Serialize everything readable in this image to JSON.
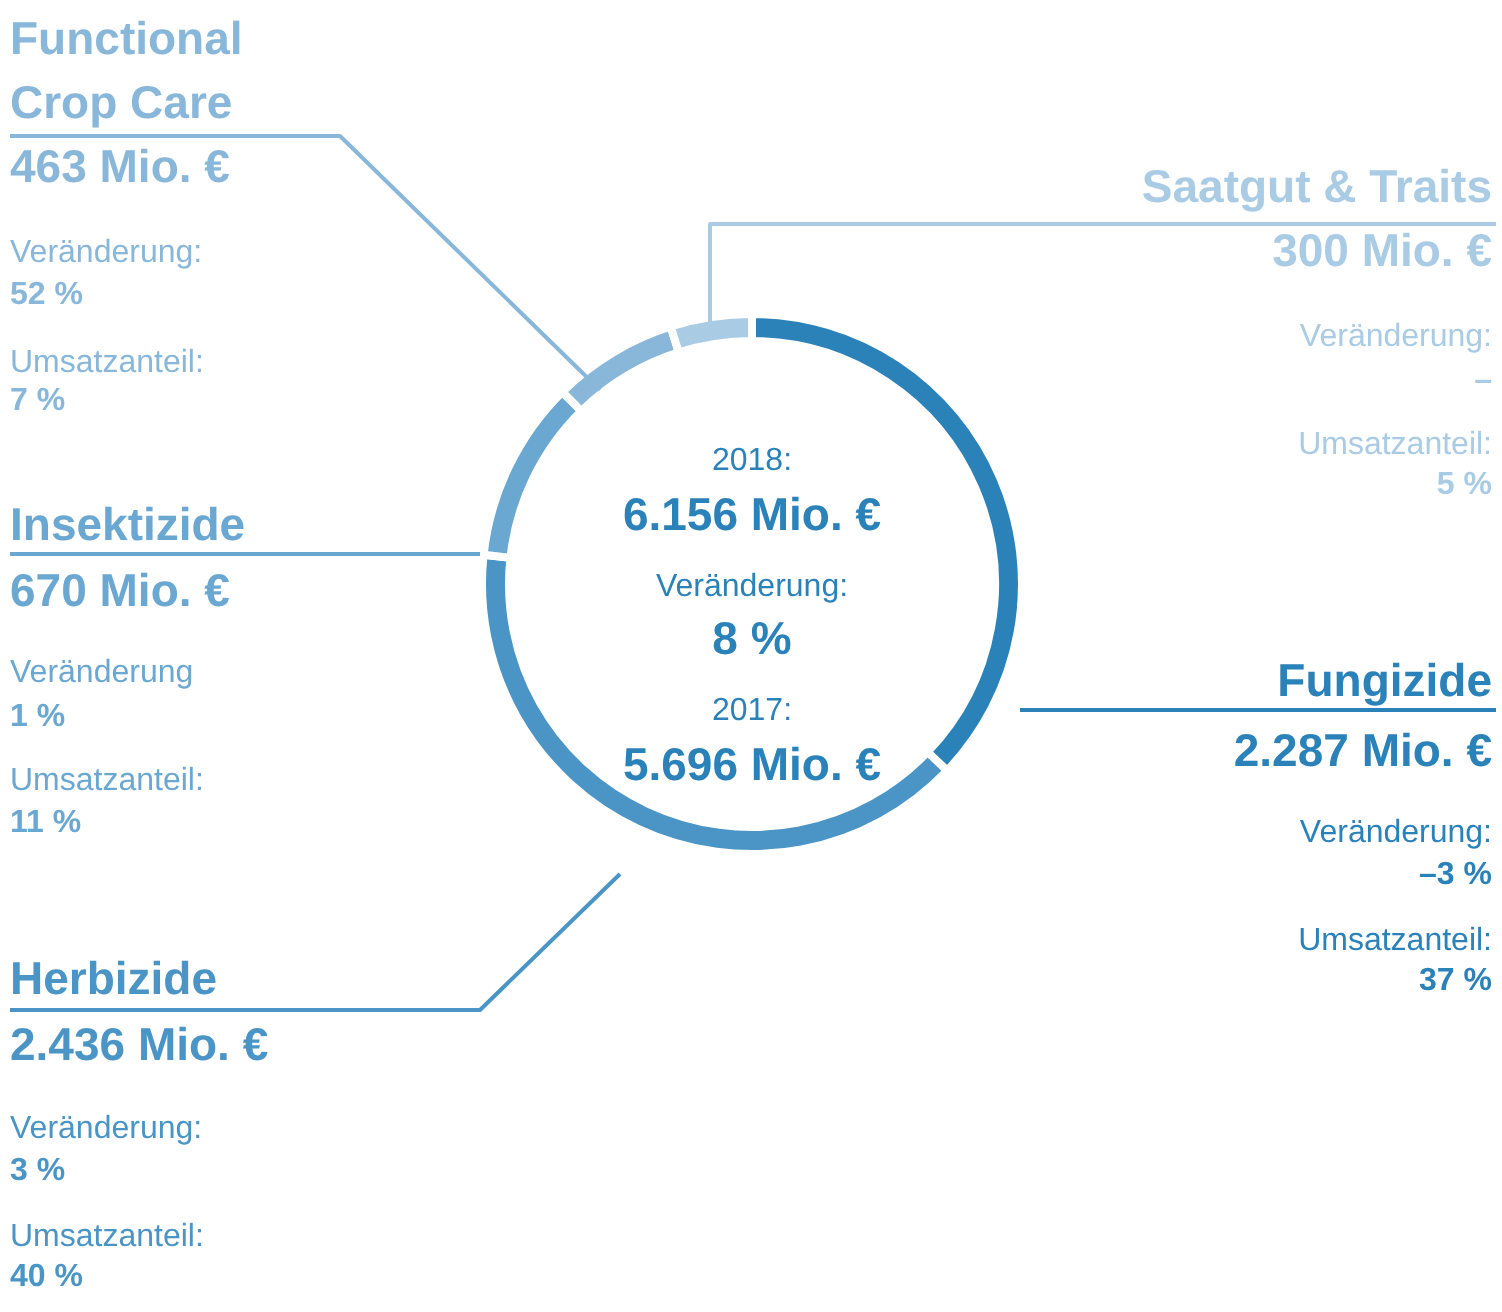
{
  "chart_data": {
    "type": "donut",
    "categories": [
      "Fungizide",
      "Herbizide",
      "Insektizide",
      "Functional Crop Care",
      "Saatgut & Traits"
    ],
    "values": [
      2287,
      2436,
      670,
      463,
      300
    ],
    "colors": [
      "#2a82b9",
      "#4a95c5",
      "#6aa8d2",
      "#88b7d9",
      "#a9cbe4"
    ],
    "value_labels": [
      "2.287 Mio. €",
      "2.436 Mio. €",
      "670 Mio. €",
      "463 Mio. €",
      "300 Mio. €"
    ],
    "annotations": [
      "2018:",
      "6.156 Mio. €",
      "Veränderung:",
      "8 %",
      "2017:",
      "5.696 Mio. €",
      "Veränderung:",
      "–3 %",
      "Umsatzanteil:",
      "37 %",
      "Veränderung:",
      "3 %",
      "Umsatzanteil:",
      "40 %",
      "Veränderung",
      "1 %",
      "Umsatzanteil:",
      "11 %",
      "Veränderung:",
      "52 %",
      "Umsatzanteil:",
      "7 %",
      "Veränderung:",
      "–",
      "Umsatzanteil:",
      "5 %"
    ]
  }
}
